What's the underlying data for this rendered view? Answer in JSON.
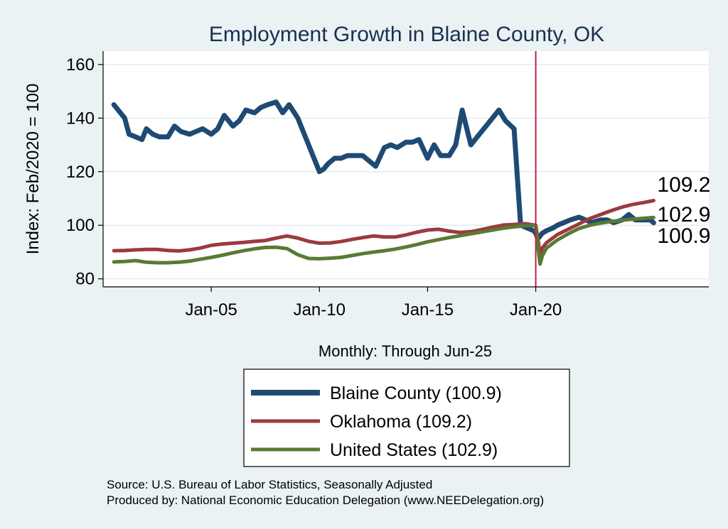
{
  "chart_data": {
    "type": "line",
    "title": "Employment Growth in Blaine  County, OK",
    "ylabel": "Index: Feb/2020 = 100",
    "xlabel": "",
    "note": "Monthly: Through Jun-25",
    "ylim": [
      77,
      165
    ],
    "y_ticks": [
      80,
      100,
      120,
      140,
      160
    ],
    "x_tick_labels": [
      "Jan-05",
      "Jan-10",
      "Jan-15",
      "Jan-20"
    ],
    "x_tick_years": [
      2005,
      2010,
      2015,
      2020
    ],
    "x_range_years": [
      2000.0,
      2028.0
    ],
    "reference_line_year": 2020.0,
    "grid": true,
    "series": [
      {
        "name": "Blaine County",
        "legend_label": "Blaine  County (100.9)",
        "end_label": "100.9",
        "color": "#1e4a73",
        "x": [
          2000.5,
          2000.8,
          2001.0,
          2001.2,
          2001.5,
          2001.8,
          2002.0,
          2002.3,
          2002.6,
          2003.0,
          2003.3,
          2003.6,
          2004.0,
          2004.3,
          2004.6,
          2005.0,
          2005.3,
          2005.6,
          2006.0,
          2006.3,
          2006.6,
          2007.0,
          2007.3,
          2007.6,
          2008.0,
          2008.3,
          2008.6,
          2009.0,
          2009.3,
          2009.6,
          2010.0,
          2010.2,
          2010.4,
          2010.7,
          2011.0,
          2011.3,
          2011.6,
          2012.0,
          2012.3,
          2012.6,
          2013.0,
          2013.3,
          2013.6,
          2014.0,
          2014.3,
          2014.6,
          2015.0,
          2015.3,
          2015.6,
          2016.0,
          2016.3,
          2016.6,
          2017.0,
          2017.3,
          2017.6,
          2018.0,
          2018.3,
          2018.6,
          2019.0,
          2019.3,
          2019.6,
          2019.9,
          2020.0,
          2020.1,
          2020.2,
          2020.3,
          2020.5,
          2020.8,
          2021.0,
          2021.3,
          2021.6,
          2022.0,
          2022.3,
          2022.6,
          2023.0,
          2023.3,
          2023.6,
          2024.0,
          2024.3,
          2024.6,
          2025.0,
          2025.3,
          2025.45
        ],
        "values": [
          145,
          142,
          140,
          134,
          133,
          132,
          136,
          134,
          133,
          133,
          137,
          135,
          134,
          135,
          136,
          134,
          136,
          141,
          137,
          139,
          143,
          142,
          144,
          145,
          146,
          142,
          145,
          140,
          134,
          128,
          120,
          121,
          123,
          125,
          125,
          126,
          126,
          126,
          124,
          122,
          129,
          130,
          129,
          131,
          131,
          132,
          125,
          130,
          126,
          126,
          130,
          143,
          130,
          133,
          136,
          140,
          143,
          139,
          136,
          100,
          99,
          98,
          97,
          95,
          96,
          97,
          98,
          99,
          100,
          101,
          102,
          103,
          102,
          101,
          102,
          102,
          101,
          102,
          104,
          102,
          102,
          102,
          100.9
        ]
      },
      {
        "name": "Oklahoma",
        "legend_label": "Oklahoma (109.2)",
        "end_label": "109.2",
        "color": "#9b3a3e",
        "x": [
          2000.5,
          2001.0,
          2001.5,
          2002.0,
          2002.5,
          2003.0,
          2003.5,
          2004.0,
          2004.5,
          2005.0,
          2005.5,
          2006.0,
          2006.5,
          2007.0,
          2007.5,
          2008.0,
          2008.5,
          2009.0,
          2009.5,
          2010.0,
          2010.5,
          2011.0,
          2011.5,
          2012.0,
          2012.5,
          2013.0,
          2013.5,
          2014.0,
          2014.5,
          2015.0,
          2015.5,
          2016.0,
          2016.5,
          2017.0,
          2017.5,
          2018.0,
          2018.5,
          2019.0,
          2019.5,
          2020.0,
          2020.1,
          2020.2,
          2020.3,
          2020.5,
          2021.0,
          2021.5,
          2022.0,
          2022.5,
          2023.0,
          2023.5,
          2024.0,
          2024.5,
          2025.0,
          2025.45
        ],
        "values": [
          90.5,
          90.6,
          90.8,
          91.0,
          91.0,
          90.6,
          90.4,
          90.8,
          91.5,
          92.5,
          93.0,
          93.3,
          93.6,
          94.0,
          94.3,
          95.2,
          96.0,
          95.2,
          94.0,
          93.3,
          93.4,
          93.9,
          94.7,
          95.4,
          96.0,
          95.6,
          95.6,
          96.4,
          97.4,
          98.2,
          98.5,
          97.8,
          97.3,
          97.6,
          98.4,
          99.3,
          100.1,
          100.3,
          100.6,
          100.0,
          95.0,
          89.0,
          91.5,
          93.5,
          96.5,
          98.5,
          100.5,
          102.5,
          104.0,
          105.5,
          106.8,
          107.8,
          108.5,
          109.2
        ]
      },
      {
        "name": "United States",
        "legend_label": "United States (102.9)",
        "end_label": "102.9",
        "color": "#5a7a34",
        "x": [
          2000.5,
          2001.0,
          2001.5,
          2002.0,
          2002.5,
          2003.0,
          2003.5,
          2004.0,
          2004.5,
          2005.0,
          2005.5,
          2006.0,
          2006.5,
          2007.0,
          2007.5,
          2008.0,
          2008.5,
          2009.0,
          2009.5,
          2010.0,
          2010.5,
          2011.0,
          2011.5,
          2012.0,
          2012.5,
          2013.0,
          2013.5,
          2014.0,
          2014.5,
          2015.0,
          2015.5,
          2016.0,
          2016.5,
          2017.0,
          2017.5,
          2018.0,
          2018.5,
          2019.0,
          2019.5,
          2020.0,
          2020.1,
          2020.2,
          2020.3,
          2020.5,
          2021.0,
          2021.5,
          2022.0,
          2022.5,
          2023.0,
          2023.5,
          2024.0,
          2024.5,
          2025.0,
          2025.45
        ],
        "values": [
          86.3,
          86.5,
          86.8,
          86.2,
          86.0,
          86.0,
          86.2,
          86.6,
          87.3,
          88.0,
          88.8,
          89.7,
          90.5,
          91.2,
          91.7,
          91.8,
          91.3,
          89.0,
          87.6,
          87.5,
          87.7,
          88.0,
          88.7,
          89.4,
          90.0,
          90.5,
          91.1,
          91.9,
          92.8,
          93.8,
          94.6,
          95.4,
          96.1,
          96.8,
          97.5,
          98.2,
          98.9,
          99.4,
          99.8,
          100.0,
          92.0,
          85.5,
          88.5,
          91.5,
          94.5,
          96.8,
          98.8,
          100.0,
          100.8,
          101.4,
          101.9,
          102.3,
          102.6,
          102.9
        ]
      }
    ],
    "legend": {
      "placement": "bottom"
    },
    "source_line_1": "Source: U.S. Bureau of Labor Statistics, Seasonally Adjusted",
    "source_line_2": "Produced by: National Economic Education Delegation (www.NEEDelegation.org)"
  }
}
